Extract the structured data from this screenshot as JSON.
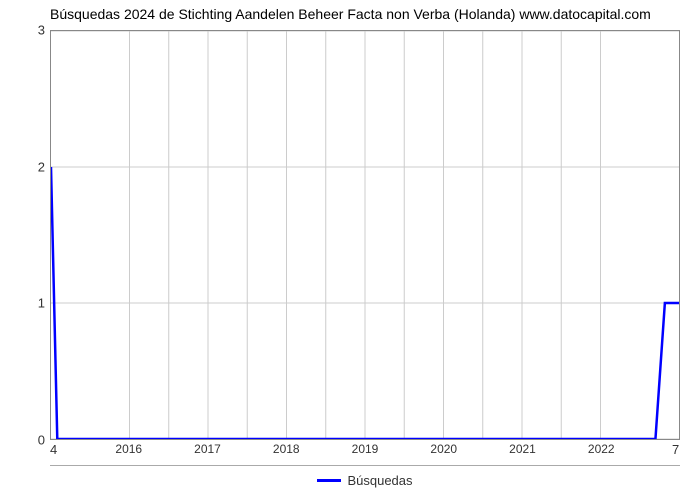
{
  "title": "Búsquedas 2024 de Stichting Aandelen Beheer Facta non Verba (Holanda) www.datocapital.com",
  "chart": {
    "type": "line",
    "series_name": "Búsquedas",
    "line_color": "#0000ff",
    "line_width": 2.5,
    "background_color": "#ffffff",
    "grid_color": "#cccccc",
    "border_color": "#888888",
    "ylim": [
      0,
      3
    ],
    "y_ticks": [
      0,
      1,
      2,
      3
    ],
    "x_ticks": [
      2016,
      2017,
      2018,
      2019,
      2020,
      2021,
      2022
    ],
    "x_data_min": 2015,
    "x_data_max": 2023,
    "corner_bottom_left": "4",
    "corner_bottom_right": "7",
    "data": [
      {
        "x": 2015.0,
        "y": 2.0
      },
      {
        "x": 2015.08,
        "y": 0.0
      },
      {
        "x": 2022.7,
        "y": 0.0
      },
      {
        "x": 2022.82,
        "y": 1.0
      },
      {
        "x": 2023.0,
        "y": 1.0
      }
    ],
    "title_fontsize": 14,
    "tick_fontsize": 13,
    "legend_fontsize": 13
  }
}
